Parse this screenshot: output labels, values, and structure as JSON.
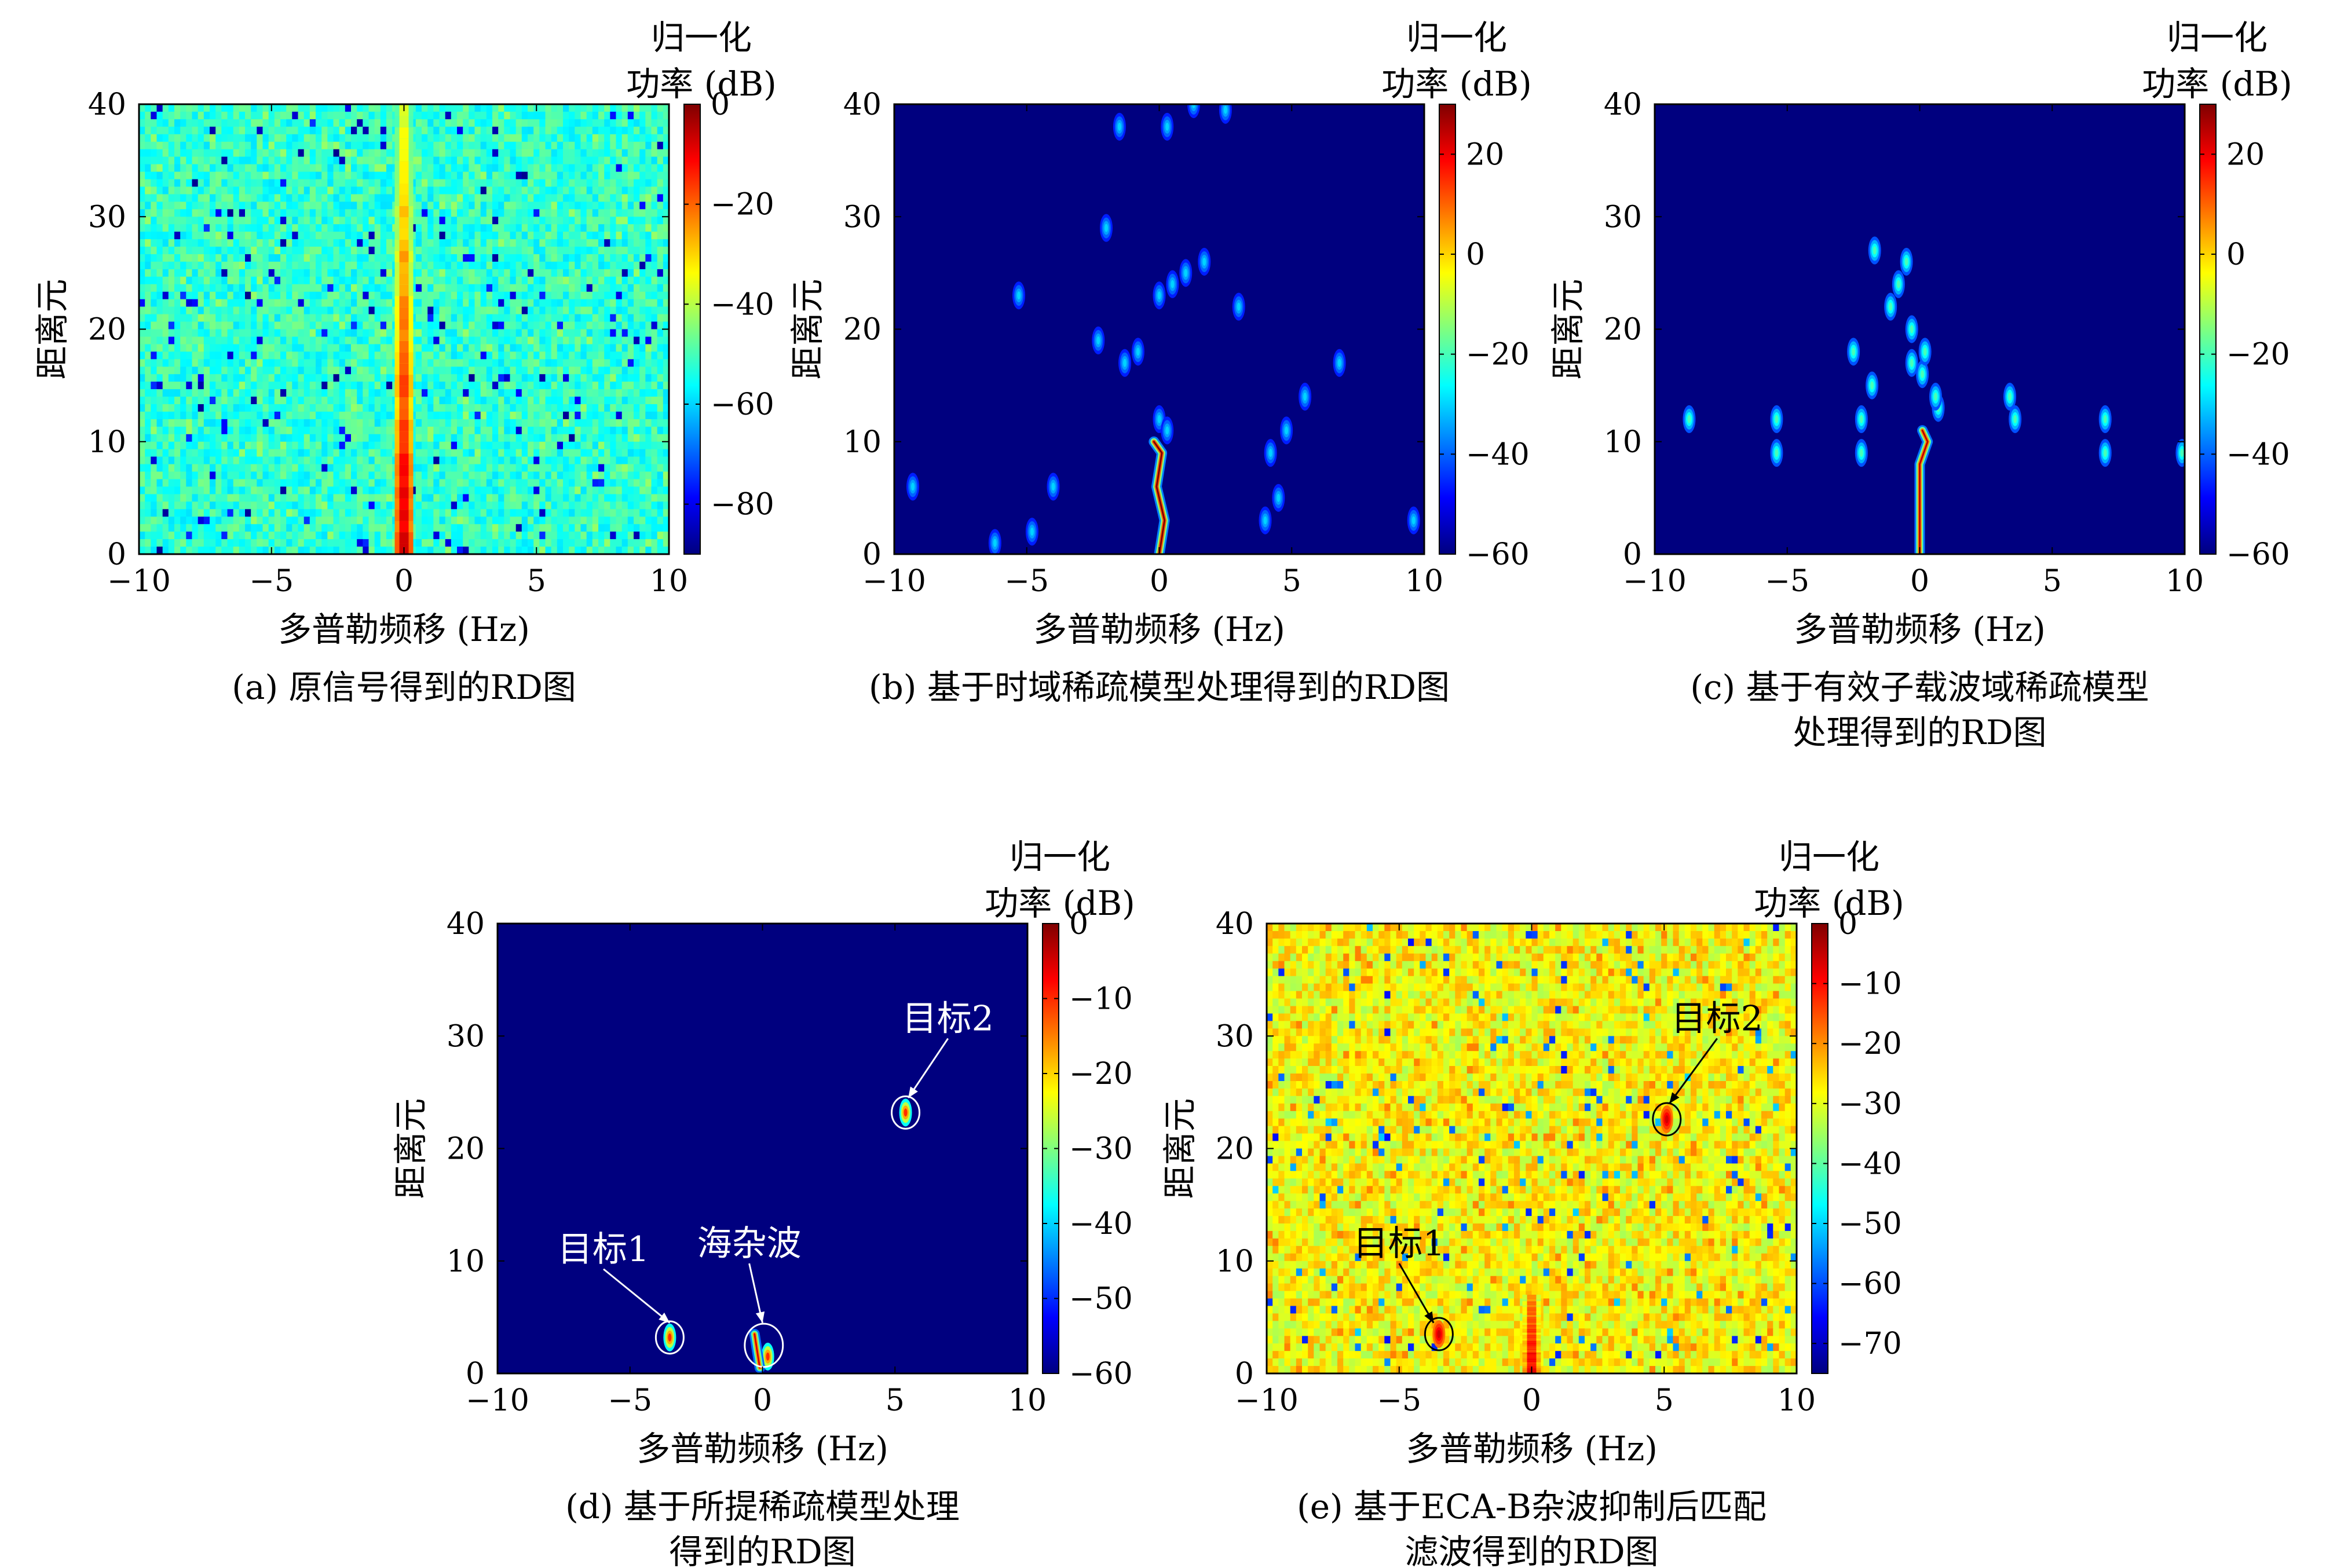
{
  "colorbar_title": [
    "归一化",
    "功率 (dB)"
  ],
  "colormap": [
    "#00007f",
    "#0000ff",
    "#007fff",
    "#00ffff",
    "#7fff7f",
    "#ffff00",
    "#ff7f00",
    "#ff0000",
    "#7f0000"
  ],
  "chart_data": [
    {
      "id": "a",
      "type": "heatmap",
      "caption": [
        "(a) 原信号得到的RD图"
      ],
      "xlabel": "多普勒频移 (Hz)",
      "ylabel": "距离元",
      "xlim": [
        -10,
        10
      ],
      "ylim": [
        0,
        40
      ],
      "xticks": [
        -10,
        -5,
        0,
        5,
        10
      ],
      "yticks": [
        0,
        10,
        20,
        30,
        40
      ],
      "colorbar": {
        "min": -90,
        "max": 0,
        "ticks": [
          0,
          -20,
          -40,
          -60,
          -80
        ]
      },
      "background_db": -52,
      "texture": "noise",
      "features": [
        {
          "kind": "vertical-ridge",
          "x": 0,
          "y_from": 0,
          "y_to": 40,
          "db_top": -38,
          "db_bottom": -8
        }
      ]
    },
    {
      "id": "b",
      "type": "heatmap",
      "caption": [
        "(b) 基于时域稀疏模型处理得到的RD图"
      ],
      "xlabel": "多普勒频移 (Hz)",
      "ylabel": "距离元",
      "xlim": [
        -10,
        10
      ],
      "ylim": [
        0,
        40
      ],
      "xticks": [
        -10,
        -5,
        0,
        5,
        10
      ],
      "yticks": [
        0,
        10,
        20,
        30,
        40
      ],
      "colorbar": {
        "min": -60,
        "max": 30,
        "ticks": [
          20,
          0,
          -20,
          -40,
          -60
        ]
      },
      "background_db": -60,
      "texture": "flat",
      "features": [
        {
          "kind": "blobs",
          "db": -30,
          "points": [
            [
              -9.3,
              6
            ],
            [
              -6.2,
              1
            ],
            [
              -4.8,
              2
            ],
            [
              -4,
              6
            ],
            [
              -5.3,
              23
            ],
            [
              -2.3,
              19
            ],
            [
              -2,
              29
            ],
            [
              -1.3,
              17
            ],
            [
              -1.5,
              38
            ],
            [
              -0.8,
              18
            ],
            [
              0,
              23
            ],
            [
              0.5,
              24
            ],
            [
              1,
              25
            ],
            [
              1.7,
              26
            ],
            [
              3,
              22
            ],
            [
              0.3,
              38
            ],
            [
              1.3,
              40
            ],
            [
              2.5,
              39.5
            ],
            [
              0,
              12
            ],
            [
              0.3,
              11
            ],
            [
              4,
              3
            ],
            [
              4.5,
              5
            ],
            [
              4.2,
              9
            ],
            [
              4.8,
              11
            ],
            [
              5.5,
              14
            ],
            [
              6.8,
              17
            ],
            [
              9.6,
              3
            ]
          ]
        },
        {
          "kind": "snake",
          "db": 30,
          "points": [
            [
              0,
              0
            ],
            [
              0.2,
              3
            ],
            [
              -0.1,
              6
            ],
            [
              0.1,
              9
            ],
            [
              -0.2,
              10
            ]
          ]
        }
      ]
    },
    {
      "id": "c",
      "type": "heatmap",
      "caption": [
        "(c) 基于有效子载波域稀疏模型",
        "处理得到的RD图"
      ],
      "xlabel": "多普勒频移 (Hz)",
      "ylabel": "距离元",
      "xlim": [
        -10,
        10
      ],
      "ylim": [
        0,
        40
      ],
      "xticks": [
        -10,
        -5,
        0,
        5,
        10
      ],
      "yticks": [
        0,
        10,
        20,
        30,
        40
      ],
      "colorbar": {
        "min": -60,
        "max": 30,
        "ticks": [
          20,
          0,
          -20,
          -40,
          -60
        ]
      },
      "background_db": -60,
      "texture": "flat",
      "features": [
        {
          "kind": "blobs",
          "db": -20,
          "points": [
            [
              -8.7,
              12
            ],
            [
              -5.4,
              12
            ],
            [
              -5.4,
              9
            ],
            [
              -2.2,
              12
            ],
            [
              -2.2,
              9
            ],
            [
              -2.5,
              18
            ],
            [
              -1.8,
              15
            ],
            [
              -1.7,
              27
            ],
            [
              -1.1,
              22
            ],
            [
              -0.8,
              24
            ],
            [
              -0.5,
              26
            ],
            [
              -0.3,
              20
            ],
            [
              -0.3,
              17
            ],
            [
              0.1,
              16
            ],
            [
              0.2,
              18
            ],
            [
              0.7,
              13
            ],
            [
              0.6,
              14
            ],
            [
              3.4,
              14
            ],
            [
              3.6,
              12
            ],
            [
              7,
              12
            ],
            [
              7,
              9
            ],
            [
              9.9,
              9
            ]
          ]
        },
        {
          "kind": "snake",
          "db": 25,
          "points": [
            [
              0,
              0
            ],
            [
              0,
              6
            ],
            [
              0,
              8
            ],
            [
              0.3,
              10
            ],
            [
              0.1,
              11
            ]
          ]
        }
      ]
    },
    {
      "id": "d",
      "type": "heatmap",
      "caption": [
        "(d) 基于所提稀疏模型处理",
        "得到的RD图"
      ],
      "xlabel": "多普勒频移 (Hz)",
      "ylabel": "距离元",
      "xlim": [
        -10,
        10
      ],
      "ylim": [
        0,
        40
      ],
      "xticks": [
        -10,
        -5,
        0,
        5,
        10
      ],
      "yticks": [
        0,
        10,
        20,
        30,
        40
      ],
      "colorbar": {
        "min": -60,
        "max": 0,
        "ticks": [
          0,
          -10,
          -20,
          -30,
          -40,
          -50,
          -60
        ]
      },
      "background_db": -60,
      "texture": "flat",
      "features": [
        {
          "kind": "blobs",
          "db": -10,
          "points": [
            [
              -3.5,
              3.2
            ],
            [
              5.4,
              23.2
            ],
            [
              0.2,
              1.5
            ]
          ]
        },
        {
          "kind": "snake",
          "db": -5,
          "points": [
            [
              -0.3,
              3.5
            ],
            [
              -0.2,
              2
            ],
            [
              -0.1,
              0.5
            ]
          ]
        }
      ],
      "annotations": [
        {
          "text": "目标1",
          "text_at": [
            -6,
            10
          ],
          "arrow_to": [
            -3.5,
            4.5
          ],
          "circle": [
            -3.5,
            3.2
          ],
          "r": 0.5,
          "color": "#ffffff"
        },
        {
          "text": "海杂波",
          "text_at": [
            -0.5,
            10.5
          ],
          "arrow_to": [
            0,
            4.5
          ],
          "circle": [
            0.05,
            2.5
          ],
          "r": 0.8,
          "color": "#ffffff"
        },
        {
          "text": "目标2",
          "text_at": [
            7,
            30.5
          ],
          "arrow_to": [
            5.5,
            24.5
          ],
          "circle": [
            5.4,
            23.2
          ],
          "r": 0.5,
          "color": "#ffffff"
        }
      ]
    },
    {
      "id": "e",
      "type": "heatmap",
      "caption": [
        "(e) 基于ECA-B杂波抑制后匹配",
        "滤波得到的RD图"
      ],
      "xlabel": "多普勒频移 (Hz)",
      "ylabel": "距离元",
      "xlim": [
        -10,
        10
      ],
      "ylim": [
        0,
        40
      ],
      "xticks": [
        -10,
        -5,
        0,
        5,
        10
      ],
      "yticks": [
        0,
        10,
        20,
        30,
        40
      ],
      "colorbar": {
        "min": -75,
        "max": 0,
        "ticks": [
          0,
          -10,
          -20,
          -30,
          -40,
          -50,
          -60,
          -70
        ]
      },
      "background_db": -28,
      "texture": "noise",
      "features": [
        {
          "kind": "vertical-ridge",
          "x": 0,
          "y_from": 0,
          "y_to": 7,
          "db_top": -20,
          "db_bottom": -8
        },
        {
          "kind": "blobs",
          "db": -6,
          "points": [
            [
              -3.5,
              3.5
            ],
            [
              5.1,
              22.6
            ]
          ]
        }
      ],
      "annotations": [
        {
          "text": "目标1",
          "text_at": [
            -5,
            10.5
          ],
          "arrow_to": [
            -3.7,
            4.5
          ],
          "circle": [
            -3.5,
            3.5
          ],
          "r": 0.5,
          "color": "#000000"
        },
        {
          "text": "目标2",
          "text_at": [
            7,
            30.5
          ],
          "arrow_to": [
            5.2,
            24
          ],
          "circle": [
            5.1,
            22.6
          ],
          "r": 0.5,
          "color": "#000000"
        }
      ]
    }
  ]
}
